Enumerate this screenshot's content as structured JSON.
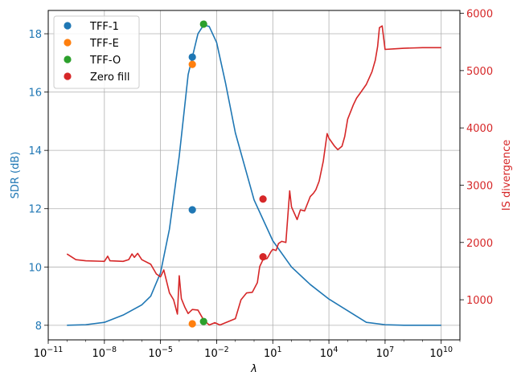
{
  "chart_data": {
    "type": "line",
    "xlabel": "λ",
    "xscale": "log",
    "xlim": [
      1e-11,
      100000000000.0
    ],
    "x_ticks": [
      {
        "value": 1e-11,
        "base": "10",
        "exp": "−11"
      },
      {
        "value": 1e-08,
        "base": "10",
        "exp": "−8"
      },
      {
        "value": 1e-05,
        "base": "10",
        "exp": "−5"
      },
      {
        "value": 0.01,
        "base": "10",
        "exp": "−2"
      },
      {
        "value": 10,
        "base": "10",
        "exp": "1"
      },
      {
        "value": 10000.0,
        "base": "10",
        "exp": "4"
      },
      {
        "value": 10000000.0,
        "base": "10",
        "exp": "7"
      },
      {
        "value": 10000000000.0,
        "base": "10",
        "exp": "10"
      }
    ],
    "y_left": {
      "label": "SDR (dB)",
      "lim": [
        7.5,
        18.8
      ],
      "ticks": [
        8,
        10,
        12,
        14,
        16,
        18
      ],
      "color": "#1f77b4"
    },
    "y_right": {
      "label": "IS divergence",
      "lim": [
        300,
        6050
      ],
      "ticks": [
        1000,
        2000,
        3000,
        4000,
        5000,
        6000
      ],
      "color": "#d62728"
    },
    "grid": true,
    "legend_position": "top-left",
    "legend": [
      {
        "label": "TFF-1",
        "color": "#1f77b4"
      },
      {
        "label": "TFF-E",
        "color": "#ff7f0e"
      },
      {
        "label": "TFF-O",
        "color": "#2ca02c"
      },
      {
        "label": "Zero fill",
        "color": "#d62728"
      }
    ],
    "series": [
      {
        "axis": "left",
        "color": "#1f77b4",
        "x": [
          1e-10,
          1e-09,
          1e-08,
          1e-07,
          1e-06,
          3e-06,
          1e-05,
          3e-05,
          0.0001,
          0.0003,
          0.001,
          0.002,
          0.004,
          0.01,
          0.03,
          0.1,
          1,
          10,
          100,
          1000.0,
          10000.0,
          100000.0,
          1000000.0,
          10000000.0,
          100000000.0,
          1000000000.0,
          10000000000.0
        ],
        "y": [
          8.0,
          8.02,
          8.1,
          8.35,
          8.7,
          9.0,
          9.8,
          11.3,
          13.8,
          16.6,
          18.0,
          18.3,
          18.25,
          17.7,
          16.3,
          14.6,
          12.3,
          10.9,
          10.0,
          9.4,
          8.9,
          8.5,
          8.1,
          8.02,
          8.0,
          8.0,
          8.0
        ]
      },
      {
        "axis": "right",
        "color": "#d62728",
        "x": [
          1e-10,
          3e-10,
          1e-09,
          1e-08,
          1.5e-08,
          2e-08,
          1e-07,
          2e-07,
          3e-07,
          4e-07,
          6e-07,
          1e-06,
          3e-06,
          6e-06,
          1e-05,
          1.5e-05,
          3e-05,
          5e-05,
          8e-05,
          0.0001,
          0.00013,
          0.0002,
          0.0003,
          0.0005,
          0.001,
          0.002,
          0.004,
          0.008,
          0.015,
          0.03,
          0.1,
          0.2,
          0.4,
          0.8,
          1.5,
          2,
          3,
          5,
          8,
          10,
          15,
          20,
          30,
          50,
          80,
          100,
          200,
          300,
          500,
          1000,
          1500,
          2000,
          3000,
          5000,
          8000,
          10000.0,
          20000.0,
          30000.0,
          50000.0,
          70000.0,
          100000.0,
          200000.0,
          300000.0,
          500000.0,
          1000000.0,
          2000000.0,
          3000000.0,
          4000000.0,
          5000000.0,
          7000000.0,
          10000000.0,
          30000000.0,
          100000000.0,
          1000000000.0,
          10000000000.0
        ],
        "y": [
          1800,
          1700,
          1680,
          1670,
          1760,
          1680,
          1670,
          1700,
          1800,
          1740,
          1810,
          1700,
          1620,
          1450,
          1400,
          1520,
          1120,
          1000,
          750,
          1420,
          1020,
          870,
          760,
          830,
          820,
          650,
          560,
          600,
          560,
          600,
          670,
          1000,
          1120,
          1130,
          1300,
          1580,
          1700,
          1720,
          1840,
          1880,
          1860,
          1980,
          2020,
          2000,
          2900,
          2620,
          2400,
          2570,
          2550,
          2800,
          2860,
          2920,
          3070,
          3420,
          3900,
          3820,
          3680,
          3620,
          3680,
          3850,
          4150,
          4400,
          4520,
          4620,
          4760,
          4980,
          5180,
          5420,
          5750,
          5780,
          5370,
          5380,
          5390,
          5400,
          5400
        ]
      }
    ],
    "markers": [
      {
        "label": "TFF-1",
        "color": "#1f77b4",
        "x": 0.0005,
        "sdr": 17.2,
        "is": 2570
      },
      {
        "label": "TFF-E",
        "color": "#ff7f0e",
        "x": 0.0005,
        "sdr": 16.95,
        "is": 580
      },
      {
        "label": "TFF-O",
        "color": "#2ca02c",
        "x": 0.002,
        "sdr": 18.33,
        "is": 620
      },
      {
        "label": "Zero fill",
        "color": "#d62728",
        "x": 3,
        "sdr": 12.33,
        "is": 1750
      }
    ]
  }
}
